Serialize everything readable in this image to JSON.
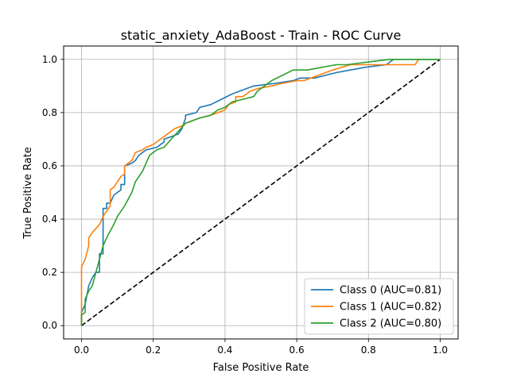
{
  "chart_data": {
    "type": "line",
    "title": "static_anxiety_AdaBoost - Train - ROC Curve",
    "xlabel": "False Positive Rate",
    "ylabel": "True Positive Rate",
    "xlim": [
      -0.05,
      1.05
    ],
    "ylim": [
      -0.05,
      1.05
    ],
    "xticks": [
      "0.0",
      "0.2",
      "0.4",
      "0.6",
      "0.8",
      "1.0"
    ],
    "yticks": [
      "0.0",
      "0.2",
      "0.4",
      "0.6",
      "0.8",
      "1.0"
    ],
    "grid": true,
    "legend_position": "lower-right",
    "series": [
      {
        "name": "Class 0 (AUC=0.81)",
        "color": "#1f77b4",
        "points": [
          [
            0,
            0
          ],
          [
            0,
            0.05
          ],
          [
            0.01,
            0.08
          ],
          [
            0.02,
            0.15
          ],
          [
            0.03,
            0.18
          ],
          [
            0.04,
            0.2
          ],
          [
            0.05,
            0.2
          ],
          [
            0.05,
            0.27
          ],
          [
            0.06,
            0.27
          ],
          [
            0.06,
            0.44
          ],
          [
            0.07,
            0.44
          ],
          [
            0.07,
            0.46
          ],
          [
            0.08,
            0.46
          ],
          [
            0.09,
            0.49
          ],
          [
            0.11,
            0.51
          ],
          [
            0.11,
            0.53
          ],
          [
            0.12,
            0.53
          ],
          [
            0.12,
            0.6
          ],
          [
            0.14,
            0.61
          ],
          [
            0.15,
            0.62
          ],
          [
            0.16,
            0.64
          ],
          [
            0.18,
            0.66
          ],
          [
            0.21,
            0.67
          ],
          [
            0.23,
            0.69
          ],
          [
            0.23,
            0.7
          ],
          [
            0.25,
            0.71
          ],
          [
            0.27,
            0.72
          ],
          [
            0.28,
            0.74
          ],
          [
            0.29,
            0.78
          ],
          [
            0.29,
            0.79
          ],
          [
            0.32,
            0.8
          ],
          [
            0.33,
            0.82
          ],
          [
            0.36,
            0.83
          ],
          [
            0.39,
            0.85
          ],
          [
            0.42,
            0.87
          ],
          [
            0.44,
            0.88
          ],
          [
            0.48,
            0.9
          ],
          [
            0.54,
            0.91
          ],
          [
            0.59,
            0.92
          ],
          [
            0.61,
            0.93
          ],
          [
            0.65,
            0.93
          ],
          [
            0.71,
            0.95
          ],
          [
            0.75,
            0.96
          ],
          [
            0.79,
            0.97
          ],
          [
            0.85,
            0.98
          ],
          [
            0.86,
            0.99
          ],
          [
            0.87,
            1.0
          ],
          [
            1.0,
            1.0
          ]
        ]
      },
      {
        "name": "Class 1 (AUC=0.82)",
        "color": "#ff7f0e",
        "points": [
          [
            0,
            0
          ],
          [
            0,
            0.22
          ],
          [
            0.01,
            0.25
          ],
          [
            0.02,
            0.3
          ],
          [
            0.02,
            0.33
          ],
          [
            0.03,
            0.35
          ],
          [
            0.05,
            0.38
          ],
          [
            0.06,
            0.41
          ],
          [
            0.07,
            0.43
          ],
          [
            0.08,
            0.45
          ],
          [
            0.08,
            0.51
          ],
          [
            0.09,
            0.52
          ],
          [
            0.1,
            0.54
          ],
          [
            0.11,
            0.56
          ],
          [
            0.12,
            0.57
          ],
          [
            0.12,
            0.6
          ],
          [
            0.13,
            0.61
          ],
          [
            0.14,
            0.62
          ],
          [
            0.15,
            0.65
          ],
          [
            0.17,
            0.66
          ],
          [
            0.18,
            0.67
          ],
          [
            0.2,
            0.68
          ],
          [
            0.22,
            0.7
          ],
          [
            0.24,
            0.72
          ],
          [
            0.26,
            0.74
          ],
          [
            0.28,
            0.75
          ],
          [
            0.29,
            0.76
          ],
          [
            0.31,
            0.77
          ],
          [
            0.33,
            0.78
          ],
          [
            0.36,
            0.79
          ],
          [
            0.38,
            0.8
          ],
          [
            0.4,
            0.81
          ],
          [
            0.41,
            0.83
          ],
          [
            0.43,
            0.84
          ],
          [
            0.43,
            0.86
          ],
          [
            0.45,
            0.86
          ],
          [
            0.46,
            0.87
          ],
          [
            0.47,
            0.88
          ],
          [
            0.49,
            0.89
          ],
          [
            0.53,
            0.9
          ],
          [
            0.56,
            0.91
          ],
          [
            0.6,
            0.92
          ],
          [
            0.62,
            0.92
          ],
          [
            0.66,
            0.94
          ],
          [
            0.7,
            0.96
          ],
          [
            0.75,
            0.98
          ],
          [
            0.85,
            0.98
          ],
          [
            0.93,
            0.98
          ],
          [
            0.94,
            1.0
          ],
          [
            1.0,
            1.0
          ]
        ]
      },
      {
        "name": "Class 2 (AUC=0.80)",
        "color": "#2ca02c",
        "points": [
          [
            0,
            0
          ],
          [
            0,
            0.04
          ],
          [
            0.01,
            0.05
          ],
          [
            0.01,
            0.1
          ],
          [
            0.02,
            0.13
          ],
          [
            0.03,
            0.15
          ],
          [
            0.04,
            0.2
          ],
          [
            0.05,
            0.25
          ],
          [
            0.06,
            0.3
          ],
          [
            0.07,
            0.33
          ],
          [
            0.09,
            0.38
          ],
          [
            0.1,
            0.41
          ],
          [
            0.12,
            0.45
          ],
          [
            0.14,
            0.5
          ],
          [
            0.15,
            0.54
          ],
          [
            0.16,
            0.56
          ],
          [
            0.17,
            0.58
          ],
          [
            0.18,
            0.61
          ],
          [
            0.19,
            0.64
          ],
          [
            0.21,
            0.66
          ],
          [
            0.23,
            0.67
          ],
          [
            0.25,
            0.7
          ],
          [
            0.27,
            0.73
          ],
          [
            0.29,
            0.76
          ],
          [
            0.31,
            0.77
          ],
          [
            0.33,
            0.78
          ],
          [
            0.36,
            0.79
          ],
          [
            0.38,
            0.81
          ],
          [
            0.4,
            0.82
          ],
          [
            0.42,
            0.84
          ],
          [
            0.45,
            0.85
          ],
          [
            0.48,
            0.86
          ],
          [
            0.49,
            0.88
          ],
          [
            0.51,
            0.9
          ],
          [
            0.53,
            0.92
          ],
          [
            0.56,
            0.94
          ],
          [
            0.59,
            0.96
          ],
          [
            0.63,
            0.96
          ],
          [
            0.67,
            0.97
          ],
          [
            0.71,
            0.98
          ],
          [
            0.74,
            0.98
          ],
          [
            0.8,
            0.99
          ],
          [
            0.86,
            1.0
          ],
          [
            1.0,
            1.0
          ]
        ]
      }
    ],
    "reference_line": {
      "color": "#000000",
      "style": "dashed",
      "points": [
        [
          0,
          0
        ],
        [
          1,
          1
        ]
      ]
    }
  }
}
